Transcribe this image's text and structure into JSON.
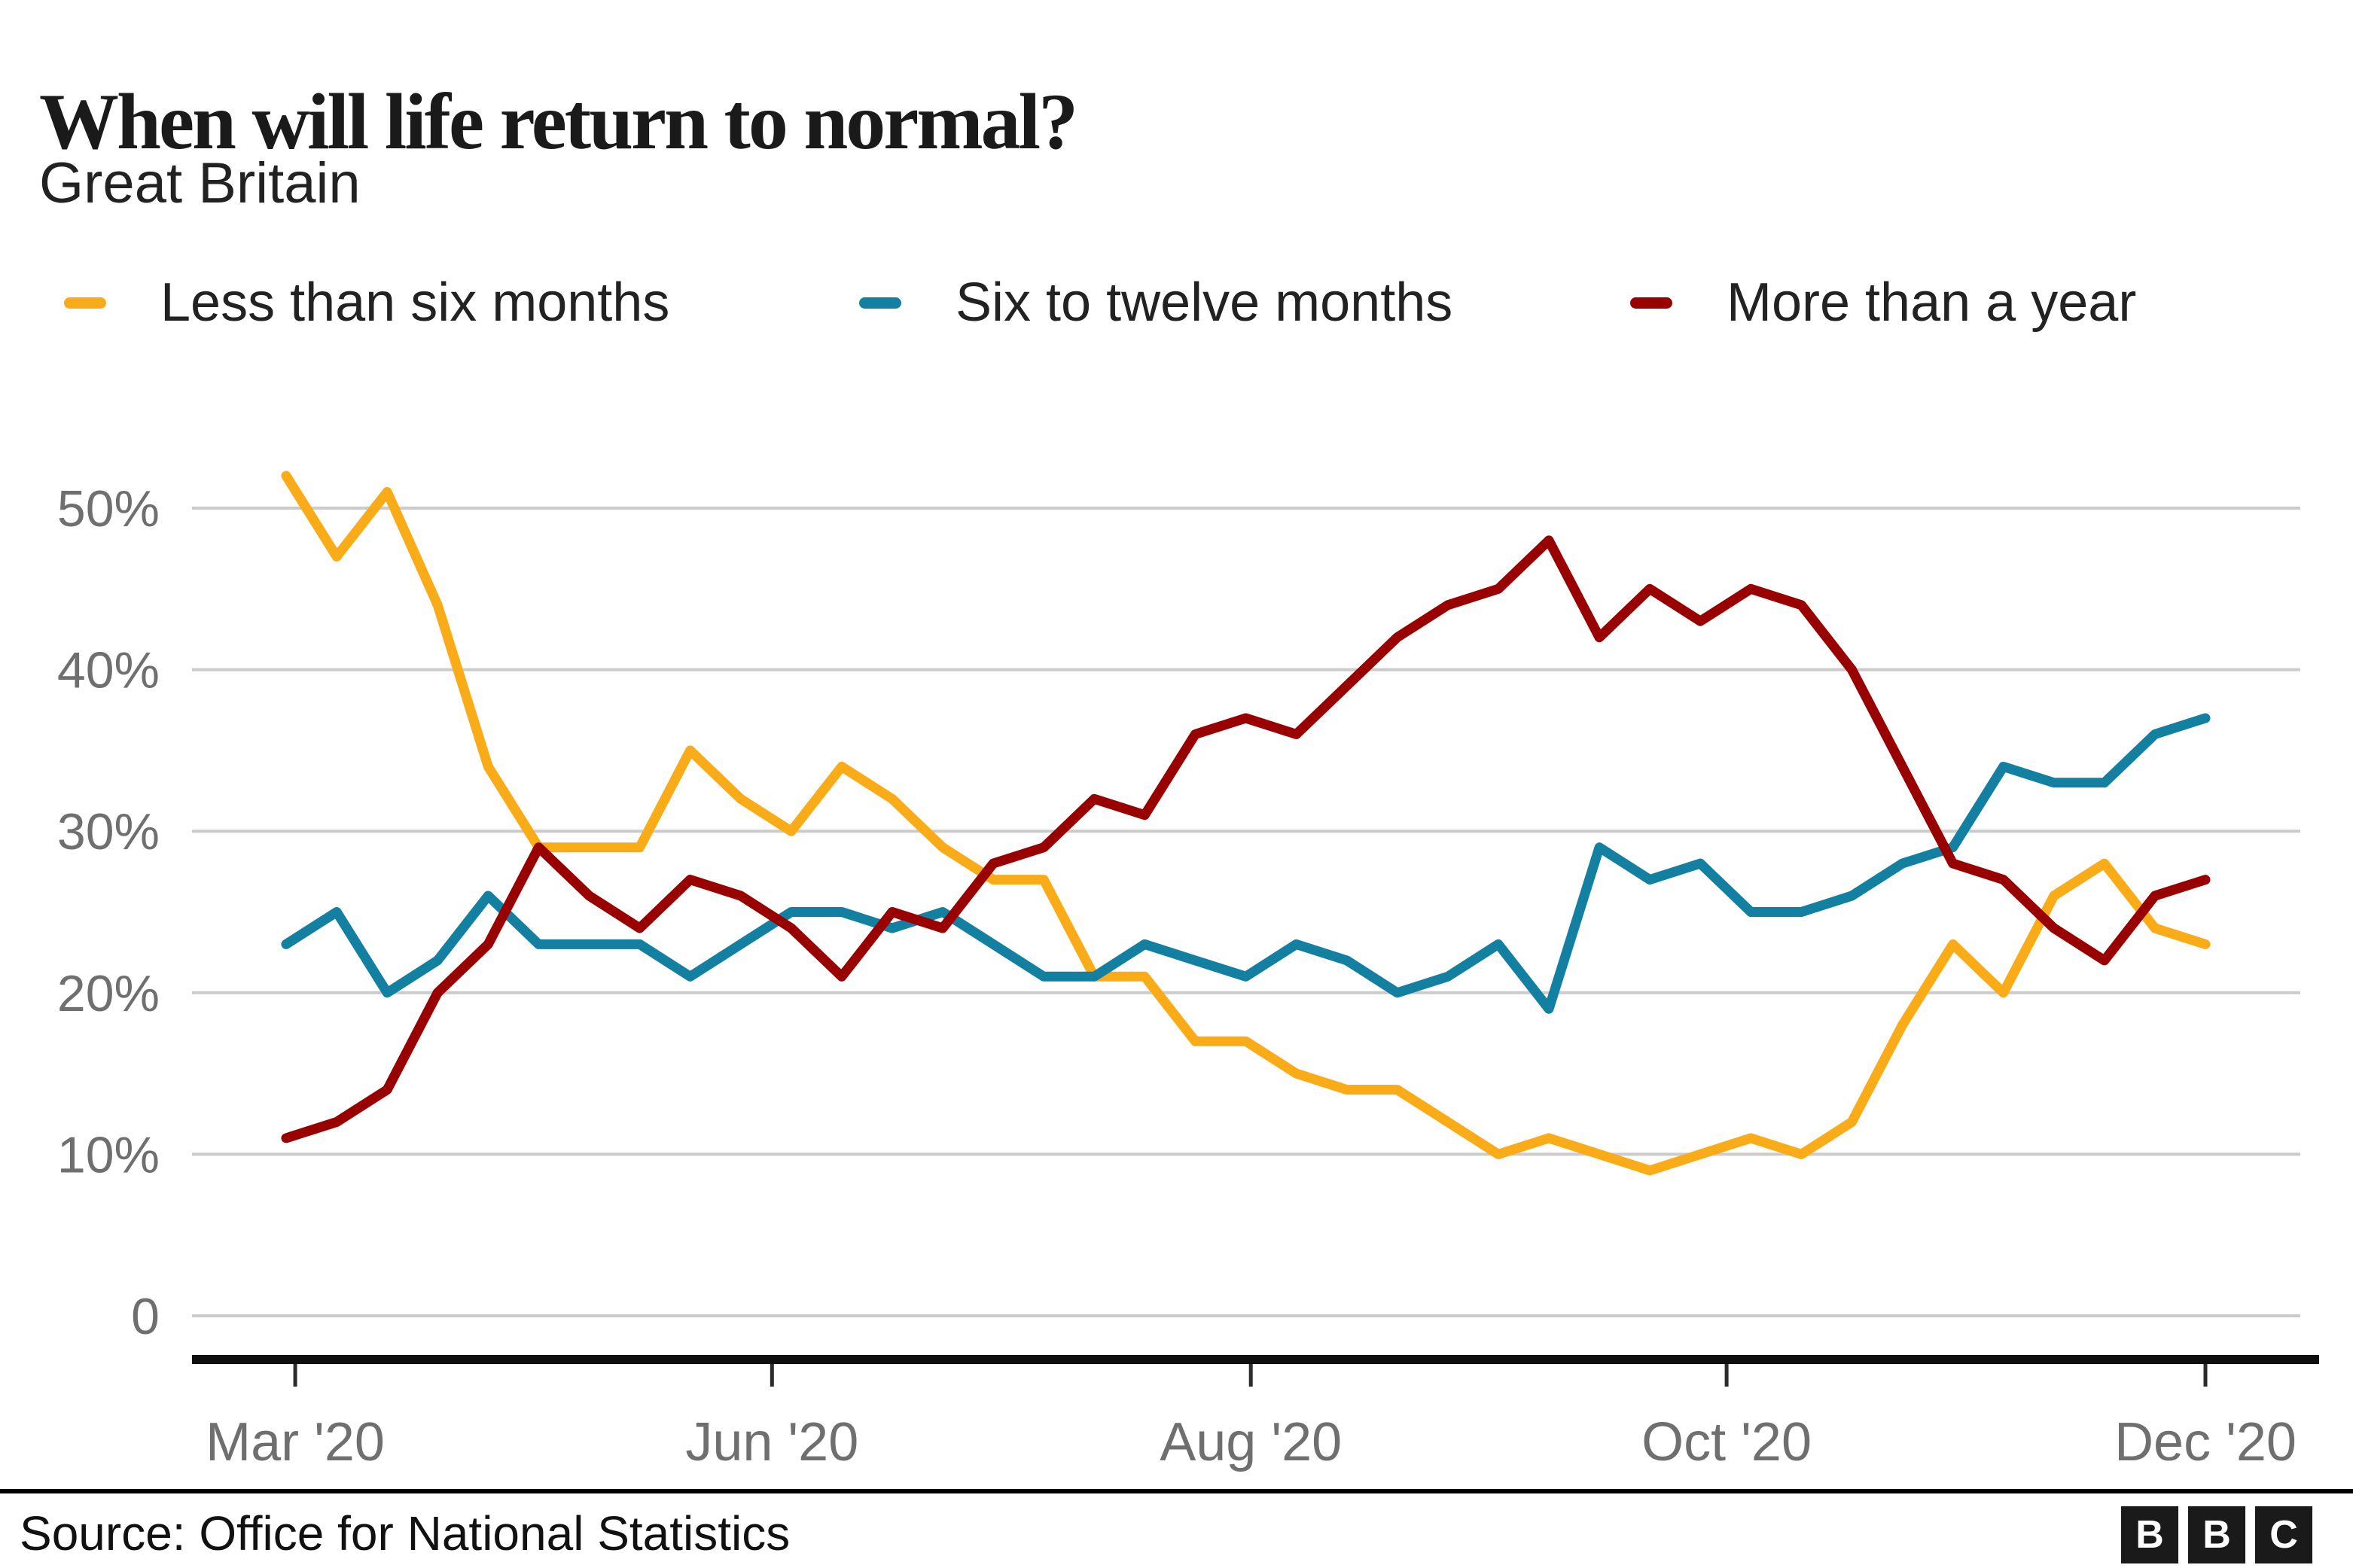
{
  "header": {
    "title": "When will life return to normal?",
    "subtitle": "Great Britain"
  },
  "legend": [
    {
      "label": "Less than six months",
      "color": "#FAAB18"
    },
    {
      "label": "Six to twelve months",
      "color": "#1380A1"
    },
    {
      "label": "More than a year",
      "color": "#990000"
    }
  ],
  "chart_data": {
    "type": "line",
    "title": "When will life return to normal?",
    "subtitle": "Great Britain",
    "x_unit": "weekly survey waves, mid-March 2020 to mid-December 2020",
    "ylim": [
      0,
      55
    ],
    "grid": "horizontal",
    "legend_position": "top",
    "y_axis": {
      "ticks": [
        {
          "value": 50,
          "label": "50%"
        },
        {
          "value": 40,
          "label": "40%"
        },
        {
          "value": 30,
          "label": "30%"
        },
        {
          "value": 20,
          "label": "20%"
        },
        {
          "value": 10,
          "label": "10%"
        },
        {
          "value": 0,
          "label": "0"
        }
      ]
    },
    "x_axis": {
      "ticks": [
        {
          "week_index": 0.18,
          "label": "Mar '20"
        },
        {
          "week_index": 9.62,
          "label": "Jun '20"
        },
        {
          "week_index": 19.1,
          "label": "Aug '20"
        },
        {
          "week_index": 28.52,
          "label": "Oct '20"
        },
        {
          "week_index": 38.0,
          "label": "Dec '20"
        }
      ]
    },
    "series": [
      {
        "name": "Less than six months",
        "color": "#FAAB18",
        "values": [
          52,
          47,
          51,
          44,
          34,
          29,
          29,
          29,
          35,
          32,
          30,
          34,
          32,
          29,
          27,
          27,
          21,
          21,
          17,
          17,
          15,
          14,
          14,
          12,
          10,
          11,
          10,
          9,
          10,
          11,
          10,
          12,
          18,
          23,
          20,
          26,
          28,
          24,
          23
        ]
      },
      {
        "name": "Six to twelve months",
        "color": "#1380A1",
        "values": [
          23,
          25,
          20,
          22,
          26,
          23,
          23,
          23,
          21,
          23,
          25,
          25,
          24,
          25,
          23,
          21,
          21,
          23,
          22,
          21,
          23,
          22,
          20,
          21,
          23,
          19,
          29,
          27,
          28,
          25,
          25,
          26,
          28,
          29,
          34,
          33,
          33,
          36,
          37
        ]
      },
      {
        "name": "More than a year",
        "color": "#990000",
        "values": [
          11,
          12,
          14,
          20,
          23,
          29,
          26,
          24,
          27,
          26,
          24,
          21,
          25,
          24,
          28,
          29,
          32,
          31,
          36,
          37,
          36,
          39,
          42,
          44,
          45,
          48,
          42,
          45,
          43,
          45,
          44,
          40,
          34,
          28,
          27,
          24,
          22,
          26,
          27
        ]
      }
    ]
  },
  "footer": {
    "source_label": "Source: Office for National Statistics",
    "logo_letters": [
      "B",
      "B",
      "C"
    ]
  },
  "colors": {
    "grid": "#cbcbcb",
    "axis": "#0f0f0f",
    "axis_text": "#6f6f6f",
    "title_text": "#1a1a1a"
  }
}
